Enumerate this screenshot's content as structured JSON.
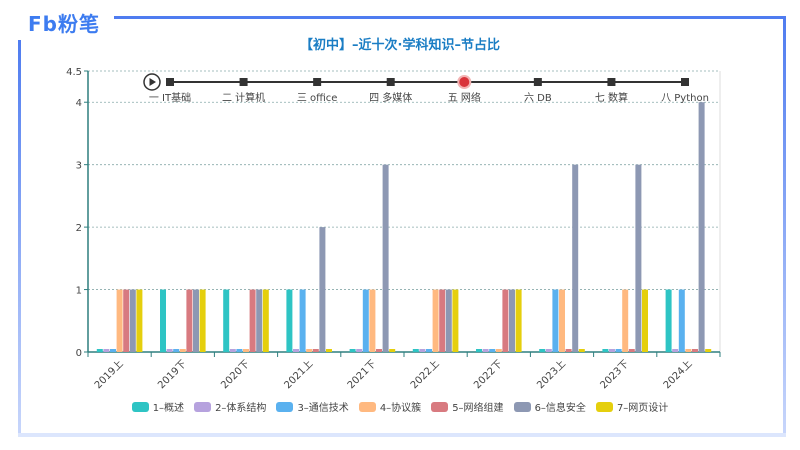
{
  "brand": {
    "logo_text": "Fb粉笔",
    "accent": "#4f7cf0"
  },
  "chart_data": {
    "type": "bar",
    "title": "【初中】–近十次·学科知识–节占比",
    "categories": [
      "2019上",
      "2019下",
      "2020下",
      "2021上",
      "2021下",
      "2022上",
      "2022下",
      "2023上",
      "2023下",
      "2024上"
    ],
    "series": [
      {
        "name": "1–概述",
        "color": "#2ec4c4",
        "values": [
          0,
          1,
          1,
          1,
          0,
          0,
          0,
          0,
          0,
          1
        ]
      },
      {
        "name": "2–体系结构",
        "color": "#b6a2de",
        "values": [
          0,
          0,
          0,
          0,
          0,
          0,
          0,
          0,
          0,
          0
        ]
      },
      {
        "name": "3–通信技术",
        "color": "#5ab1ef",
        "values": [
          0,
          0,
          0,
          1,
          1,
          0,
          0,
          1,
          0,
          1
        ]
      },
      {
        "name": "4–协议簇",
        "color": "#ffb980",
        "values": [
          1,
          0,
          0,
          0,
          1,
          1,
          0,
          1,
          1,
          0
        ]
      },
      {
        "name": "5–网络组建",
        "color": "#d87a80",
        "values": [
          1,
          1,
          1,
          0,
          0,
          1,
          1,
          0,
          0,
          0
        ]
      },
      {
        "name": "6–信息安全",
        "color": "#8d98b3",
        "values": [
          1,
          1,
          1,
          2,
          3,
          1,
          1,
          3,
          3,
          4
        ]
      },
      {
        "name": "7–网页设计",
        "color": "#e5cf0d",
        "values": [
          1,
          1,
          1,
          0,
          0,
          1,
          1,
          0,
          1,
          0
        ]
      }
    ],
    "yticks": [
      "0",
      "1",
      "2",
      "3",
      "4",
      "4.5"
    ],
    "ylim": [
      0,
      4.5
    ],
    "grid": true,
    "legend_position": "bottom"
  },
  "timeline": {
    "items": [
      "一 IT基础",
      "二 计算机",
      "三 office",
      "四 多媒体",
      "五 网络",
      "六 DB",
      "七 数算",
      "八 Python"
    ],
    "current_index": 4,
    "play_icon": "play-icon"
  }
}
